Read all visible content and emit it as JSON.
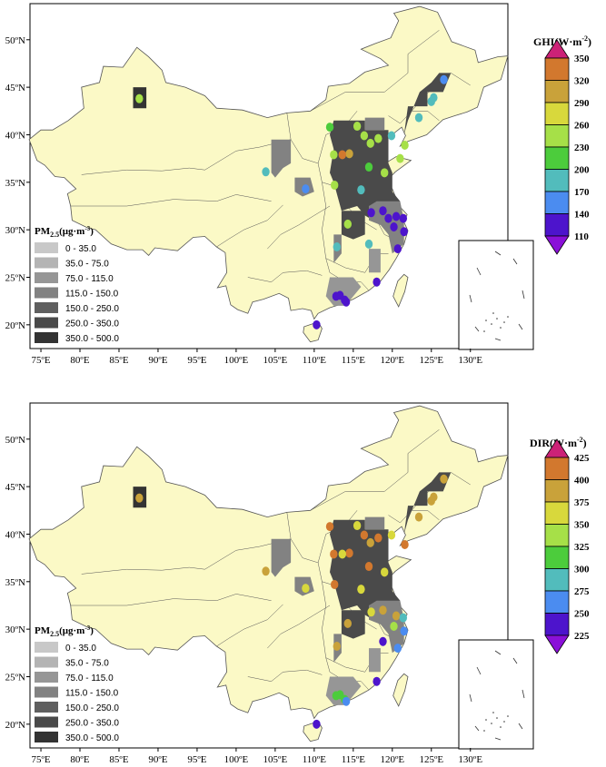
{
  "colors": {
    "land": "#fbf9c6",
    "sea": "#ffffff",
    "border": "#555555"
  },
  "panels": [
    {
      "id": "ghi",
      "lat_ticks": [
        "50ºN",
        "45ºN",
        "40ºN",
        "35ºN",
        "30ºN",
        "25ºN",
        "20ºN"
      ],
      "lon_ticks": [
        "75ºE",
        "80ºE",
        "85ºE",
        "90ºE",
        "95ºE",
        "100ºE",
        "105ºE",
        "110ºE",
        "115ºE",
        "120ºE",
        "125ºE",
        "130ºE"
      ],
      "pm_legend": {
        "title": "PM",
        "title_sub": "2.5",
        "title_unit": "(μg·m",
        "title_sup": "-3",
        "title_end": ")",
        "classes": [
          {
            "label": "0 - 35.0",
            "color": "#c8c8c8"
          },
          {
            "label": "35.0 - 75.0",
            "color": "#b4b4b4"
          },
          {
            "label": "75.0 - 115.0",
            "color": "#969696"
          },
          {
            "label": "115.0 - 150.0",
            "color": "#828282"
          },
          {
            "label": "150.0 - 250.0",
            "color": "#5f5f5f"
          },
          {
            "label": "250.0 - 350.0",
            "color": "#4a4a4a"
          },
          {
            "label": "350.0 - 500.0",
            "color": "#333333"
          }
        ]
      },
      "colorbar": {
        "title": "GHI(W·m",
        "title_sup": "-2",
        "title_end": ")",
        "ticks": [
          "350",
          "320",
          "290",
          "260",
          "230",
          "200",
          "170",
          "140",
          "110"
        ],
        "colors": [
          "#cc2277",
          "#d2782e",
          "#c9a23a",
          "#d8d83c",
          "#a6e048",
          "#4ccc3c",
          "#52bcbc",
          "#4b8cf0",
          "#4d14cc",
          "#8a10d8"
        ]
      },
      "stations": [
        {
          "lon": 87.6,
          "lat": 43.8,
          "v": 250
        },
        {
          "lon": 116.4,
          "lat": 39.9,
          "v": 240
        },
        {
          "lon": 117.2,
          "lat": 39.1,
          "v": 250
        },
        {
          "lon": 114.5,
          "lat": 38.0,
          "v": 320
        },
        {
          "lon": 113.6,
          "lat": 37.9,
          "v": 330
        },
        {
          "lon": 112.5,
          "lat": 37.9,
          "v": 260
        },
        {
          "lon": 112.0,
          "lat": 40.8,
          "v": 230
        },
        {
          "lon": 118.2,
          "lat": 39.6,
          "v": 250
        },
        {
          "lon": 115.5,
          "lat": 40.9,
          "v": 250
        },
        {
          "lon": 119.9,
          "lat": 39.9,
          "v": 180
        },
        {
          "lon": 121.6,
          "lat": 38.9,
          "v": 250
        },
        {
          "lon": 121.0,
          "lat": 37.5,
          "v": 250
        },
        {
          "lon": 117.0,
          "lat": 36.6,
          "v": 230
        },
        {
          "lon": 119.0,
          "lat": 36.0,
          "v": 240
        },
        {
          "lon": 112.6,
          "lat": 34.7,
          "v": 250
        },
        {
          "lon": 116.0,
          "lat": 34.2,
          "v": 180
        },
        {
          "lon": 117.3,
          "lat": 31.8,
          "v": 120
        },
        {
          "lon": 118.8,
          "lat": 32.0,
          "v": 120
        },
        {
          "lon": 119.5,
          "lat": 31.2,
          "v": 130
        },
        {
          "lon": 120.5,
          "lat": 31.4,
          "v": 120
        },
        {
          "lon": 121.4,
          "lat": 31.2,
          "v": 120
        },
        {
          "lon": 120.2,
          "lat": 30.3,
          "v": 130
        },
        {
          "lon": 121.5,
          "lat": 29.8,
          "v": 120
        },
        {
          "lon": 120.7,
          "lat": 28.0,
          "v": 130
        },
        {
          "lon": 117.0,
          "lat": 28.5,
          "v": 200
        },
        {
          "lon": 114.3,
          "lat": 30.6,
          "v": 240
        },
        {
          "lon": 112.9,
          "lat": 28.2,
          "v": 190
        },
        {
          "lon": 113.3,
          "lat": 23.1,
          "v": 120
        },
        {
          "lon": 113.9,
          "lat": 22.6,
          "v": 120
        },
        {
          "lon": 114.1,
          "lat": 22.4,
          "v": 130
        },
        {
          "lon": 112.8,
          "lat": 23.0,
          "v": 120
        },
        {
          "lon": 118.0,
          "lat": 24.5,
          "v": 120
        },
        {
          "lon": 110.3,
          "lat": 20.0,
          "v": 120
        },
        {
          "lon": 108.9,
          "lat": 34.3,
          "v": 170
        },
        {
          "lon": 103.8,
          "lat": 36.1,
          "v": 180
        },
        {
          "lon": 123.4,
          "lat": 41.8,
          "v": 200
        },
        {
          "lon": 125.3,
          "lat": 43.9,
          "v": 200
        },
        {
          "lon": 125.0,
          "lat": 43.5,
          "v": 200
        },
        {
          "lon": 126.6,
          "lat": 45.8,
          "v": 170
        }
      ]
    },
    {
      "id": "dir",
      "lat_ticks": [
        "50ºN",
        "45ºN",
        "40ºN",
        "35ºN",
        "30ºN",
        "25ºN",
        "20ºN"
      ],
      "lon_ticks": [
        "75ºE",
        "80ºE",
        "85ºE",
        "90ºE",
        "95ºE",
        "100ºE",
        "105ºE",
        "110ºE",
        "115ºE",
        "120ºE",
        "125ºE",
        "130ºE"
      ],
      "pm_legend": {
        "title": "PM",
        "title_sub": "2.5",
        "title_unit": "(μg·m",
        "title_sup": "-3",
        "title_end": ")",
        "classes": [
          {
            "label": "0 - 35.0",
            "color": "#c8c8c8"
          },
          {
            "label": "35.0 - 75.0",
            "color": "#b4b4b4"
          },
          {
            "label": "75.0 - 115.0",
            "color": "#969696"
          },
          {
            "label": "115.0 - 150.0",
            "color": "#828282"
          },
          {
            "label": "150.0 - 250.0",
            "color": "#5f5f5f"
          },
          {
            "label": "250.0 - 350.0",
            "color": "#4a4a4a"
          },
          {
            "label": "350.0 - 500.0",
            "color": "#333333"
          }
        ]
      },
      "colorbar": {
        "title": "DIR(W·m",
        "title_sup": "-2",
        "title_end": ")",
        "ticks": [
          "425",
          "400",
          "375",
          "350",
          "325",
          "300",
          "275",
          "250",
          "225"
        ],
        "colors": [
          "#cc2277",
          "#d2782e",
          "#c9a23a",
          "#d8d83c",
          "#a6e048",
          "#4ccc3c",
          "#52bcbc",
          "#4b8cf0",
          "#4d14cc",
          "#8a10d8"
        ]
      },
      "stations": [
        {
          "lon": 87.6,
          "lat": 43.8,
          "v": 380
        },
        {
          "lon": 116.4,
          "lat": 39.9,
          "v": 430
        },
        {
          "lon": 117.2,
          "lat": 39.1,
          "v": 380
        },
        {
          "lon": 114.5,
          "lat": 38.0,
          "v": 430
        },
        {
          "lon": 113.6,
          "lat": 37.9,
          "v": 360
        },
        {
          "lon": 112.5,
          "lat": 37.9,
          "v": 430
        },
        {
          "lon": 112.0,
          "lat": 40.8,
          "v": 430
        },
        {
          "lon": 118.2,
          "lat": 39.6,
          "v": 430
        },
        {
          "lon": 115.5,
          "lat": 40.9,
          "v": 360
        },
        {
          "lon": 119.9,
          "lat": 39.9,
          "v": 360
        },
        {
          "lon": 121.6,
          "lat": 38.9,
          "v": 410
        },
        {
          "lon": 117.0,
          "lat": 36.6,
          "v": 430
        },
        {
          "lon": 119.0,
          "lat": 36.0,
          "v": 360
        },
        {
          "lon": 112.6,
          "lat": 34.7,
          "v": 430
        },
        {
          "lon": 116.0,
          "lat": 34.2,
          "v": 360
        },
        {
          "lon": 117.3,
          "lat": 31.8,
          "v": 360
        },
        {
          "lon": 118.8,
          "lat": 32.0,
          "v": 380
        },
        {
          "lon": 120.5,
          "lat": 31.4,
          "v": 390
        },
        {
          "lon": 121.4,
          "lat": 31.2,
          "v": 290
        },
        {
          "lon": 120.2,
          "lat": 30.3,
          "v": 330
        },
        {
          "lon": 121.5,
          "lat": 29.8,
          "v": 270
        },
        {
          "lon": 120.7,
          "lat": 28.0,
          "v": 260
        },
        {
          "lon": 118.8,
          "lat": 28.7,
          "v": 240
        },
        {
          "lon": 114.3,
          "lat": 30.6,
          "v": 380
        },
        {
          "lon": 112.9,
          "lat": 28.2,
          "v": 380
        },
        {
          "lon": 113.3,
          "lat": 23.1,
          "v": 310
        },
        {
          "lon": 113.9,
          "lat": 22.6,
          "v": 310
        },
        {
          "lon": 114.1,
          "lat": 22.4,
          "v": 260
        },
        {
          "lon": 112.8,
          "lat": 23.0,
          "v": 310
        },
        {
          "lon": 118.0,
          "lat": 24.5,
          "v": 240
        },
        {
          "lon": 110.3,
          "lat": 20.0,
          "v": 240
        },
        {
          "lon": 108.9,
          "lat": 34.3,
          "v": 370
        },
        {
          "lon": 103.8,
          "lat": 36.1,
          "v": 380
        },
        {
          "lon": 123.4,
          "lat": 41.8,
          "v": 380
        },
        {
          "lon": 125.3,
          "lat": 43.9,
          "v": 380
        },
        {
          "lon": 125.0,
          "lat": 43.5,
          "v": 390
        },
        {
          "lon": 126.6,
          "lat": 45.8,
          "v": 380
        }
      ]
    }
  ]
}
